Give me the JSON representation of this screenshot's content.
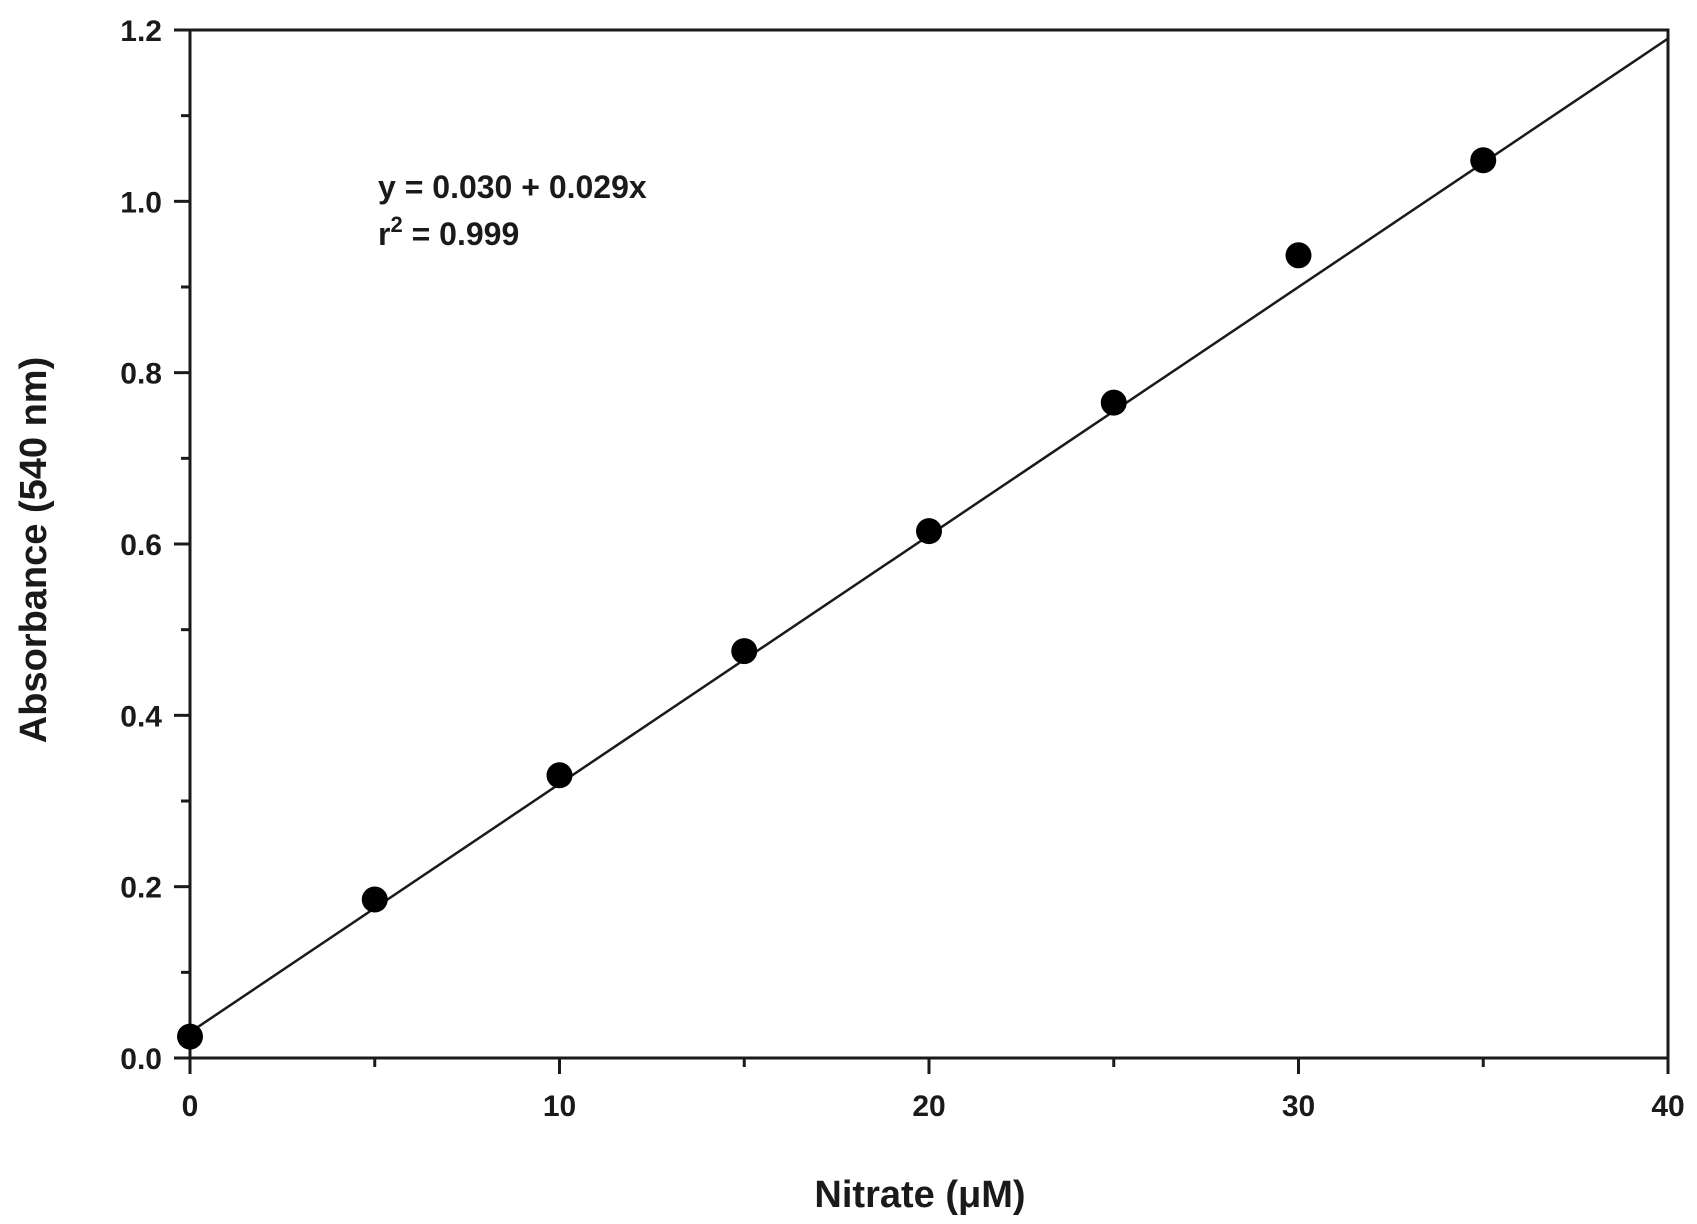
{
  "chart_data": {
    "type": "scatter",
    "xlabel": "Nitrate (μM)",
    "ylabel": "Absorbance (540 nm)",
    "xlim": [
      0,
      40
    ],
    "ylim": [
      0,
      1.2
    ],
    "x_ticks": [
      0,
      10,
      20,
      30,
      40
    ],
    "x_tick_labels": [
      "0",
      "10",
      "20",
      "30",
      "40"
    ],
    "x_minor_ticks": [
      5,
      15,
      25,
      35
    ],
    "y_ticks": [
      0,
      0.2,
      0.4,
      0.6,
      0.8,
      1.0,
      1.2
    ],
    "y_tick_labels": [
      "0.0",
      "0.2",
      "0.4",
      "0.6",
      "0.8",
      "1.0",
      "1.2"
    ],
    "y_minor_ticks": [
      0.1,
      0.3,
      0.5,
      0.7,
      0.9,
      1.1
    ],
    "grid": false,
    "series": [
      {
        "x": [
          0,
          5,
          10,
          15,
          20,
          25,
          30,
          35
        ],
        "y": [
          0.025,
          0.185,
          0.33,
          0.475,
          0.615,
          0.765,
          0.937,
          1.048
        ],
        "marker": "filled-circle",
        "color": "#000000"
      }
    ],
    "fit_line": {
      "intercept": 0.03,
      "slope": 0.029,
      "color": "#1a1a1a"
    },
    "annotations": {
      "equation": "y = 0.030 + 0.029x",
      "r2_prefix": "r",
      "r2_sup": "2",
      "r2_value": " = 0.999"
    }
  }
}
